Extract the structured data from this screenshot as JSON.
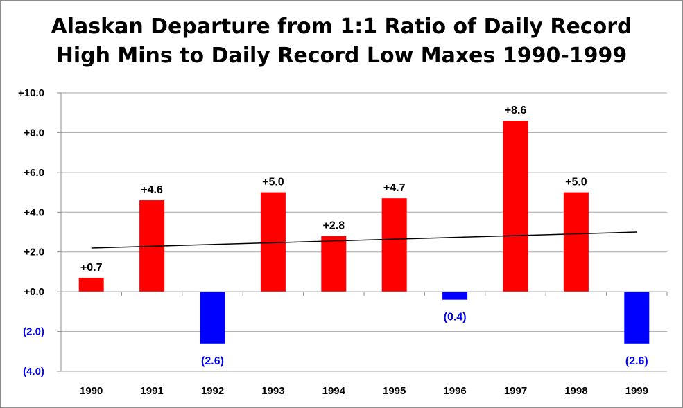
{
  "chart_data": {
    "type": "bar",
    "title_lines": [
      "Alaskan Departure from 1:1 Ratio of Daily Record",
      "High Mins to Daily Record Low Maxes 1990-1999"
    ],
    "categories": [
      "1990",
      "1991",
      "1992",
      "1993",
      "1994",
      "1995",
      "1996",
      "1997",
      "1998",
      "1999"
    ],
    "values": [
      0.7,
      4.6,
      -2.6,
      5.0,
      2.8,
      4.7,
      -0.4,
      8.6,
      5.0,
      -2.6
    ],
    "data_labels": [
      "+0.7",
      "+4.6",
      "(2.6)",
      "+5.0",
      "+2.8",
      "+4.7",
      "(0.4)",
      "+8.6",
      "+5.0",
      "(2.6)"
    ],
    "ylim": [
      -4,
      10
    ],
    "y_ticks": [
      10,
      8,
      6,
      4,
      2,
      0,
      -2,
      -4
    ],
    "y_tick_labels": [
      "+10.0",
      "+8.0",
      "+6.0",
      "+4.0",
      "+2.0",
      "+0.0",
      "(2.0)",
      "(4.0)"
    ],
    "trendline": {
      "start": 2.2,
      "end": 3.0
    },
    "grid": true,
    "colors": {
      "positive": "#ff0000",
      "negative": "#0000ff",
      "grid": "#a6a6a6",
      "axis": "#8c8c8c",
      "trend": "#000000",
      "text": "#000000"
    }
  }
}
